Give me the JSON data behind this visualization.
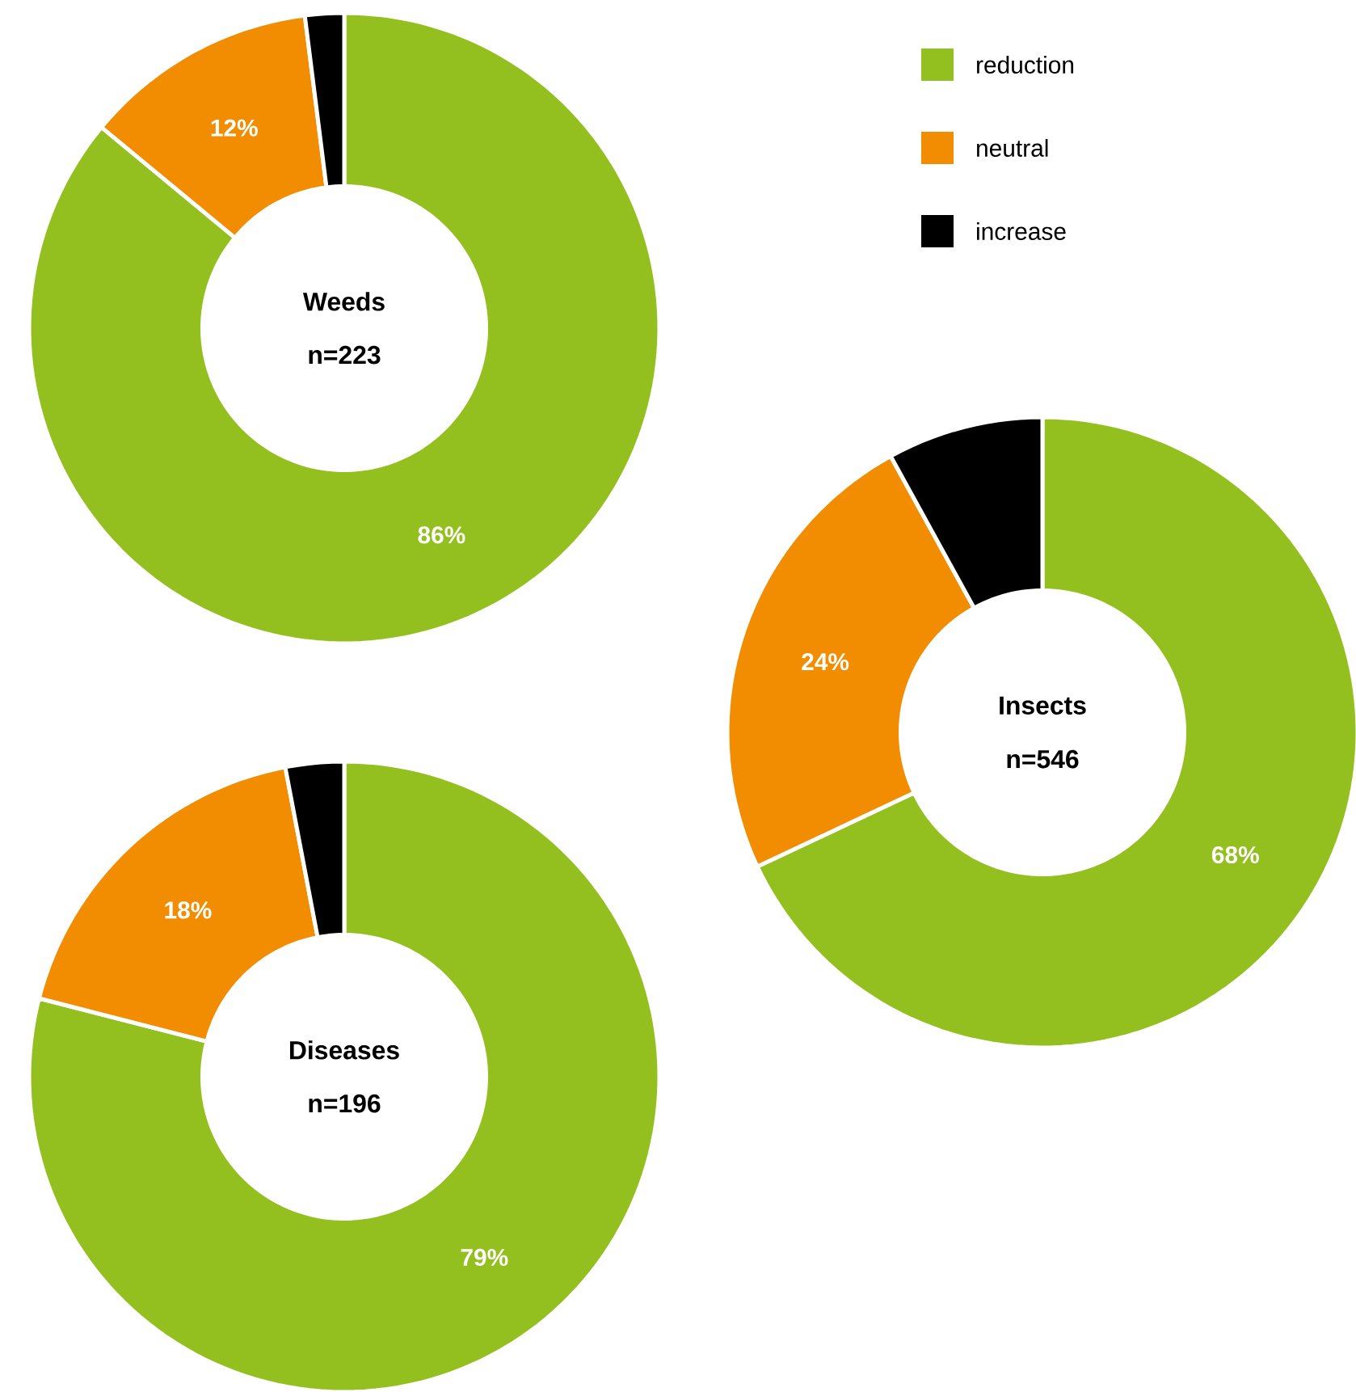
{
  "chart_data": [
    {
      "type": "donut",
      "title": "Weeds",
      "subtitle": "n=223",
      "categories": [
        "reduction",
        "neutral",
        "increase"
      ],
      "values": [
        86,
        12,
        2
      ],
      "colors": [
        "#93c01f",
        "#f28c00",
        "#000000"
      ],
      "value_labels": [
        "86%",
        "12%",
        null
      ],
      "legend": "top right"
    },
    {
      "type": "donut",
      "title": "Insects",
      "subtitle": "n=546",
      "categories": [
        null,
        null,
        null
      ],
      "values": [
        68,
        24,
        8
      ],
      "colors": [
        "#93c01f",
        "#f28c00",
        "#000000"
      ],
      "value_labels": [
        "68%",
        "24%",
        null
      ]
    },
    {
      "type": "donut",
      "title": "Diseases",
      "subtitle": "n=196",
      "categories": [
        null,
        null,
        null
      ],
      "values": [
        79,
        18,
        3
      ],
      "colors": [
        "#93c01f",
        "#f28c00",
        "#000000"
      ],
      "value_labels": [
        "79%",
        "18%",
        null
      ]
    }
  ]
}
